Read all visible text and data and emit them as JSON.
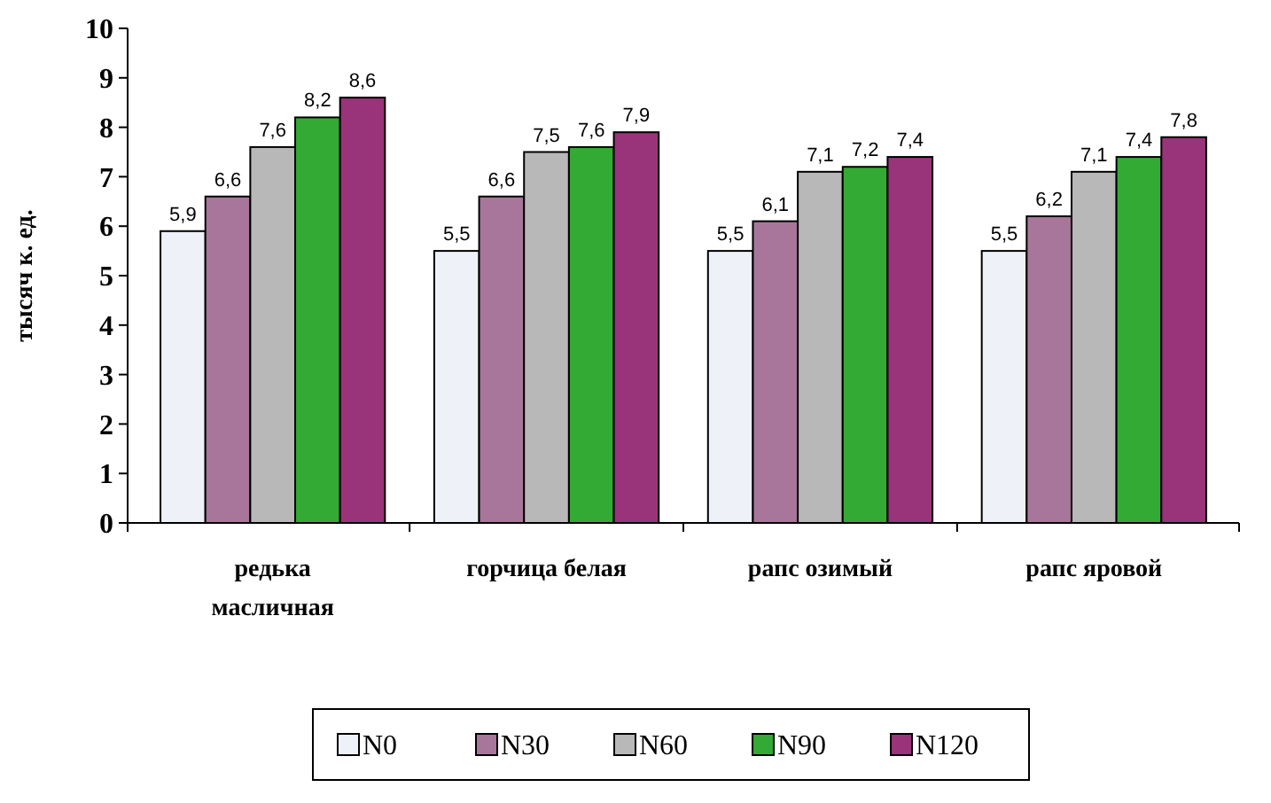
{
  "chart_data": {
    "type": "bar",
    "ylabel": "тысяч к. ед.",
    "categories": [
      "редька масличная",
      "горчица белая",
      "рапс озимый",
      "рапс яровой"
    ],
    "series": [
      {
        "name": "N0",
        "color": "#eef2f8",
        "values": [
          5.9,
          5.5,
          5.5,
          5.5
        ],
        "value_labels": [
          "5,9",
          "5,5",
          "5,5",
          "5,5"
        ]
      },
      {
        "name": "N30",
        "color": "#a8769a",
        "values": [
          6.6,
          6.6,
          6.1,
          6.2
        ],
        "value_labels": [
          "6,6",
          "6,6",
          "6,1",
          "6,2"
        ]
      },
      {
        "name": "N60",
        "color": "#b8b8b8",
        "values": [
          7.6,
          7.5,
          7.1,
          7.1
        ],
        "value_labels": [
          "7,6",
          "7,5",
          "7,1",
          "7,1"
        ]
      },
      {
        "name": "N90",
        "color": "#33aa33",
        "values": [
          8.2,
          7.6,
          7.2,
          7.4
        ],
        "value_labels": [
          "8,2",
          "7,6",
          "7,2",
          "7,4"
        ]
      },
      {
        "name": "N120",
        "color": "#99337a",
        "values": [
          8.6,
          7.9,
          7.4,
          7.8
        ],
        "value_labels": [
          "8,6",
          "7,9",
          "7,4",
          "7,8"
        ]
      }
    ],
    "ylim": [
      0,
      10
    ],
    "yticks": [
      0,
      1,
      2,
      3,
      4,
      5,
      6,
      7,
      8,
      9,
      10
    ],
    "grid": false,
    "legend": "bottom"
  }
}
